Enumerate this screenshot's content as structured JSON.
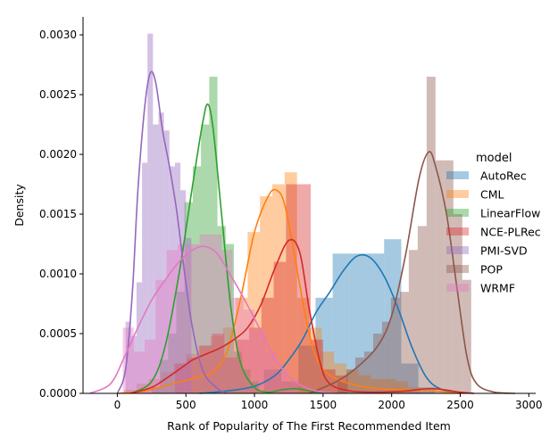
{
  "chart_data": {
    "type": "histogram-kde",
    "xlabel": "Rank of Popularity of The First Recommended Item",
    "ylabel": "Density",
    "xlim": [
      -250,
      3050
    ],
    "ylim": [
      0,
      0.00315
    ],
    "x_ticks": [
      0,
      500,
      1000,
      1500,
      2000,
      2500,
      3000
    ],
    "y_ticks": [
      0.0,
      0.0005,
      0.001,
      0.0015,
      0.002,
      0.0025,
      0.003
    ],
    "y_tick_labels": [
      "0.0000",
      "0.0005",
      "0.0010",
      "0.0015",
      "0.0020",
      "0.0025",
      "0.0030"
    ],
    "grid": false,
    "legend": {
      "title": "model",
      "placement": "right"
    },
    "series": [
      {
        "name": "AutoRec",
        "color": "#1f77b4",
        "bin_width": 125,
        "bins": [
          [
            1070,
            0.0002
          ],
          [
            1195,
            0.0001
          ],
          [
            1320,
            0.0004
          ],
          [
            1445,
            0.0008
          ],
          [
            1570,
            0.00117
          ],
          [
            1695,
            0.00117
          ],
          [
            1820,
            0.00117
          ],
          [
            1945,
            0.00129
          ],
          [
            2070,
            0.00025
          ],
          [
            2195,
            5e-05
          ]
        ],
        "kde": [
          [
            600,
            0
          ],
          [
            800,
            2e-05
          ],
          [
            1000,
            6e-05
          ],
          [
            1150,
            0.00015
          ],
          [
            1250,
            0.00028
          ],
          [
            1350,
            0.00045
          ],
          [
            1450,
            0.00068
          ],
          [
            1550,
            0.00085
          ],
          [
            1650,
            0.00103
          ],
          [
            1750,
            0.00115
          ],
          [
            1850,
            0.00113
          ],
          [
            1950,
            0.00097
          ],
          [
            2050,
            0.0007
          ],
          [
            2150,
            0.00038
          ],
          [
            2250,
            0.00014
          ],
          [
            2350,
            4e-05
          ],
          [
            2500,
            0.0
          ]
        ]
      },
      {
        "name": "CML",
        "color": "#ff7f0e",
        "bin_width": 90,
        "bins": [
          [
            50,
            3e-05
          ],
          [
            140,
            8e-05
          ],
          [
            230,
            0.00012
          ],
          [
            320,
            0.00018
          ],
          [
            410,
            0.00025
          ],
          [
            500,
            0.00033
          ],
          [
            590,
            0.0004
          ],
          [
            680,
            0.00048
          ],
          [
            770,
            0.00055
          ],
          [
            860,
            0.0008
          ],
          [
            950,
            0.00135
          ],
          [
            1040,
            0.00165
          ],
          [
            1130,
            0.00175
          ],
          [
            1220,
            0.00185
          ],
          [
            1310,
            0.0008
          ],
          [
            1400,
            0.00055
          ],
          [
            1490,
            0.00035
          ],
          [
            1580,
            0.00025
          ],
          [
            1670,
            0.0002
          ],
          [
            1760,
            0.00015
          ],
          [
            1850,
            0.00012
          ],
          [
            1940,
            0.00012
          ],
          [
            2030,
            0.0001
          ],
          [
            2120,
            5e-05
          ]
        ],
        "kde": [
          [
            0,
            0
          ],
          [
            200,
            2e-05
          ],
          [
            400,
            8e-05
          ],
          [
            600,
            0.00014
          ],
          [
            700,
            0.00018
          ],
          [
            800,
            0.00035
          ],
          [
            900,
            0.0008
          ],
          [
            1000,
            0.00135
          ],
          [
            1100,
            0.00165
          ],
          [
            1160,
            0.0017
          ],
          [
            1220,
            0.00158
          ],
          [
            1300,
            0.0011
          ],
          [
            1380,
            0.0006
          ],
          [
            1450,
            0.0003
          ],
          [
            1550,
            0.00015
          ],
          [
            1700,
            8e-05
          ],
          [
            1900,
            4e-05
          ],
          [
            2100,
            3e-05
          ],
          [
            2300,
            2e-05
          ],
          [
            2500,
            0
          ]
        ]
      },
      {
        "name": "LinearFlow",
        "color": "#2ca02c",
        "bin_width": 60,
        "bins": [
          [
            250,
            5e-05
          ],
          [
            310,
            0.00028
          ],
          [
            370,
            0.0005
          ],
          [
            430,
            0.00085
          ],
          [
            490,
            0.0016
          ],
          [
            550,
            0.0019
          ],
          [
            610,
            0.00225
          ],
          [
            670,
            0.00265
          ],
          [
            730,
            0.0014
          ],
          [
            790,
            0.00125
          ],
          [
            850,
            0.00035
          ],
          [
            910,
            0.0002
          ],
          [
            970,
            0.0001
          ]
        ],
        "kde": [
          [
            100,
            0
          ],
          [
            250,
            0.0001
          ],
          [
            350,
            0.0004
          ],
          [
            450,
            0.001
          ],
          [
            550,
            0.00175
          ],
          [
            620,
            0.00225
          ],
          [
            660,
            0.00242
          ],
          [
            700,
            0.0022
          ],
          [
            760,
            0.0015
          ],
          [
            830,
            0.0007
          ],
          [
            900,
            0.00025
          ],
          [
            1000,
            5e-05
          ],
          [
            1100,
            1e-05
          ],
          [
            1200,
            3e-05
          ],
          [
            1300,
            4e-05
          ],
          [
            1400,
            2e-05
          ],
          [
            1500,
            0
          ]
        ]
      },
      {
        "name": "NCE-PLRec",
        "color": "#d62728",
        "bin_width": 90,
        "bins": [
          [
            420,
            0.00025
          ],
          [
            510,
            0.0003
          ],
          [
            600,
            0.0004
          ],
          [
            690,
            0.0005
          ],
          [
            780,
            0.0003
          ],
          [
            870,
            0.00045
          ],
          [
            960,
            0.00055
          ],
          [
            1050,
            0.0008
          ],
          [
            1140,
            0.0011
          ],
          [
            1230,
            0.00175
          ],
          [
            1320,
            0.00175
          ],
          [
            1410,
            0.00045
          ],
          [
            1500,
            0.0002
          ],
          [
            1590,
            0.00015
          ]
        ],
        "kde": [
          [
            100,
            0
          ],
          [
            250,
            5e-05
          ],
          [
            350,
            0.00012
          ],
          [
            450,
            0.0002
          ],
          [
            550,
            0.00028
          ],
          [
            650,
            0.00033
          ],
          [
            750,
            0.00038
          ],
          [
            850,
            0.00045
          ],
          [
            950,
            0.00055
          ],
          [
            1050,
            0.00075
          ],
          [
            1150,
            0.00105
          ],
          [
            1250,
            0.00128
          ],
          [
            1330,
            0.00118
          ],
          [
            1400,
            0.0007
          ],
          [
            1480,
            0.00025
          ],
          [
            1550,
            8e-05
          ],
          [
            1700,
            2e-05
          ],
          [
            1900,
            1e-05
          ],
          [
            2100,
            2e-05
          ],
          [
            2300,
            4e-05
          ],
          [
            2500,
            1e-05
          ],
          [
            2600,
            0
          ]
        ]
      },
      {
        "name": "PMI-SVD",
        "color": "#9467bd",
        "bin_width": 40,
        "bins": [
          [
            60,
            0.0006
          ],
          [
            100,
            0.00048
          ],
          [
            140,
            0.00093
          ],
          [
            180,
            0.00193
          ],
          [
            220,
            0.00301
          ],
          [
            260,
            0.00225
          ],
          [
            300,
            0.00235
          ],
          [
            340,
            0.0022
          ],
          [
            380,
            0.0019
          ],
          [
            420,
            0.00193
          ],
          [
            460,
            0.0017
          ],
          [
            500,
            0.0013
          ]
        ],
        "kde": [
          [
            0,
            0
          ],
          [
            60,
            0.0002
          ],
          [
            110,
            0.00085
          ],
          [
            150,
            0.0017
          ],
          [
            200,
            0.0024
          ],
          [
            240,
            0.00268
          ],
          [
            280,
            0.0026
          ],
          [
            330,
            0.0022
          ],
          [
            380,
            0.0019
          ],
          [
            430,
            0.00155
          ],
          [
            480,
            0.0011
          ],
          [
            540,
            0.0006
          ],
          [
            620,
            0.0002
          ],
          [
            720,
            5e-05
          ],
          [
            800,
            0
          ]
        ]
      },
      {
        "name": "POP",
        "color": "#8c564b",
        "bin_width": 65,
        "bins": [
          [
            1605,
            0.0001
          ],
          [
            1670,
            0.0002
          ],
          [
            1735,
            0.0003
          ],
          [
            1800,
            0.00035
          ],
          [
            1865,
            0.0005
          ],
          [
            1930,
            0.0006
          ],
          [
            1995,
            0.0008
          ],
          [
            2060,
            0.00085
          ],
          [
            2125,
            0.0012
          ],
          [
            2190,
            0.0014
          ],
          [
            2255,
            0.00265
          ],
          [
            2320,
            0.00195
          ],
          [
            2385,
            0.00195
          ],
          [
            2450,
            0.0015
          ],
          [
            2515,
            0.00095
          ]
        ],
        "kde": [
          [
            1400,
            0
          ],
          [
            1600,
            0.0001
          ],
          [
            1750,
            0.00022
          ],
          [
            1900,
            0.0004
          ],
          [
            2000,
            0.00065
          ],
          [
            2100,
            0.00115
          ],
          [
            2200,
            0.0018
          ],
          [
            2270,
            0.00202
          ],
          [
            2320,
            0.0019
          ],
          [
            2400,
            0.0015
          ],
          [
            2480,
            0.00085
          ],
          [
            2550,
            0.0003
          ],
          [
            2620,
            8e-05
          ],
          [
            2750,
            1e-05
          ],
          [
            2900,
            0
          ]
        ]
      },
      {
        "name": "WRMF",
        "color": "#e377c2",
        "bin_width": 80,
        "bins": [
          [
            40,
            0.00055
          ],
          [
            120,
            0.00035
          ],
          [
            200,
            0.00045
          ],
          [
            280,
            0.00095
          ],
          [
            360,
            0.0012
          ],
          [
            440,
            0.00125
          ],
          [
            520,
            0.00125
          ],
          [
            600,
            0.00133
          ],
          [
            680,
            0.00133
          ],
          [
            760,
            0.0012
          ],
          [
            840,
            0.0008
          ],
          [
            920,
            0.0007
          ],
          [
            1000,
            0.00052
          ],
          [
            1080,
            0.00035
          ],
          [
            1160,
            0.0002
          ],
          [
            1240,
            0.0001
          ]
        ],
        "kde": [
          [
            -200,
            0
          ],
          [
            -50,
            8e-05
          ],
          [
            50,
            0.0003
          ],
          [
            150,
            0.00055
          ],
          [
            250,
            0.00078
          ],
          [
            350,
            0.00095
          ],
          [
            450,
            0.0011
          ],
          [
            550,
            0.0012
          ],
          [
            630,
            0.00123
          ],
          [
            720,
            0.00118
          ],
          [
            820,
            0.001
          ],
          [
            920,
            0.0008
          ],
          [
            1020,
            0.00058
          ],
          [
            1120,
            0.00035
          ],
          [
            1220,
            0.00018
          ],
          [
            1320,
            8e-05
          ],
          [
            1450,
            2e-05
          ],
          [
            1600,
            0
          ]
        ]
      }
    ]
  }
}
